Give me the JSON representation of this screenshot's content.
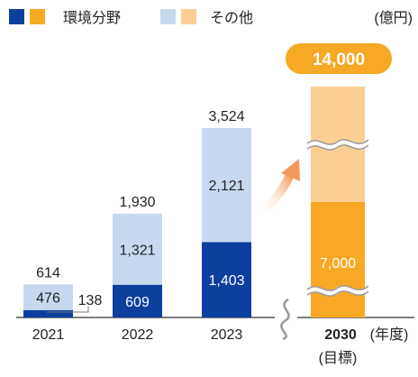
{
  "chart_data": {
    "type": "bar",
    "stacked": true,
    "unit": "(億円)",
    "legend": [
      {
        "label": "環境分野",
        "colors": [
          "#0d3f9f",
          "#f7a824"
        ]
      },
      {
        "label": "その他",
        "colors": [
          "#c8d9ef",
          "#fbcf91"
        ]
      }
    ],
    "categories": [
      "2021",
      "2022",
      "2023",
      "2030"
    ],
    "series": [
      {
        "name": "環境分野",
        "values": [
          138,
          609,
          1403,
          7000
        ]
      },
      {
        "name": "その他",
        "values": [
          476,
          1321,
          2121,
          7000
        ]
      }
    ],
    "totals": [
      614,
      1930,
      3524,
      14000
    ],
    "value_labels": {
      "env": [
        "138",
        "609",
        "1,403",
        "7,000"
      ],
      "other": [
        "476",
        "1,321",
        "2,121",
        ""
      ],
      "total": [
        "614",
        "1,930",
        "3,524",
        "14,000"
      ]
    },
    "x_labels": [
      "2021",
      "2022",
      "2023",
      "2030"
    ],
    "x_suffix": "(年度)",
    "target_note": "(目標)",
    "colors": {
      "env_actual": "#0d3f9f",
      "other_actual": "#c8d9ef",
      "env_target": "#f7a824",
      "other_target": "#fbcf91",
      "badge": "#f7a824",
      "arrow": "#f7a824"
    },
    "axis_break": true
  }
}
